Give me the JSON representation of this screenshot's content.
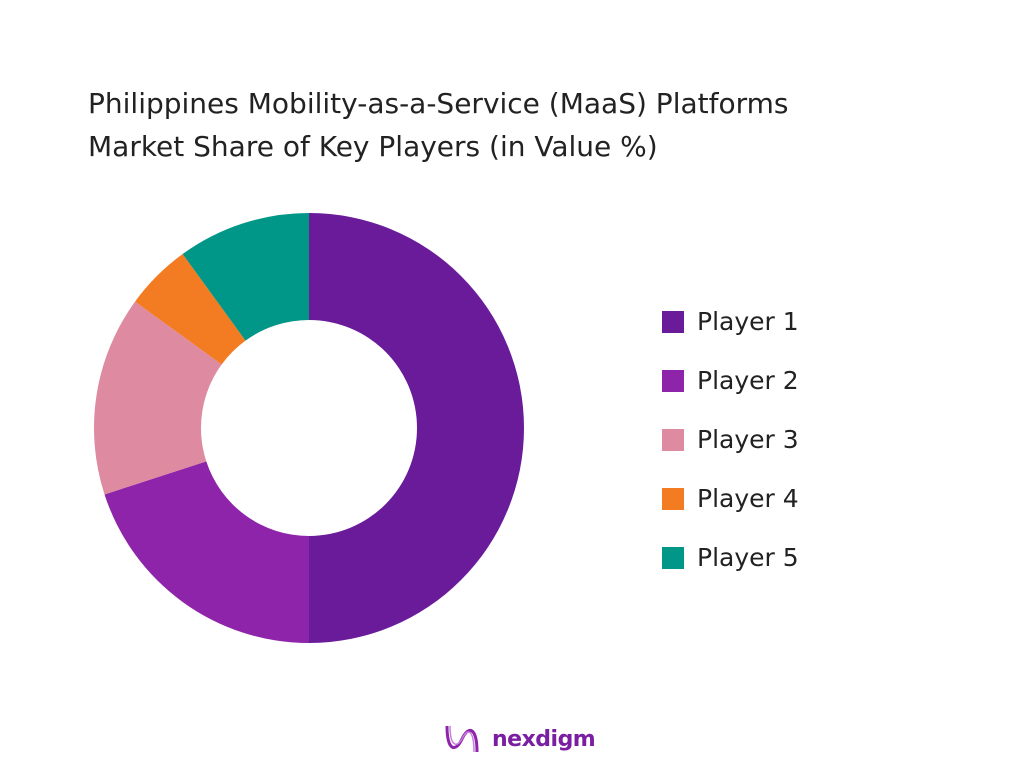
{
  "chart_data": {
    "type": "pie",
    "variant": "donut",
    "title": "Philippines Mobility-as-a-Service (MaaS) Platforms Market Share of Key Players (in Value %)",
    "title_lines": [
      "Philippines Mobility-as-a-Service (MaaS) Platforms",
      "Market Share of Key Players (in Value %)"
    ],
    "categories": [
      "Player 1",
      "Player 2",
      "Player 3",
      "Player 4",
      "Player 5"
    ],
    "values": [
      50,
      20,
      15,
      5,
      10
    ],
    "colors": [
      "#6a1b9a",
      "#8e24aa",
      "#de8aa0",
      "#f37c22",
      "#009688"
    ],
    "legend_position": "right"
  },
  "brand": {
    "name": "nexdigm"
  }
}
